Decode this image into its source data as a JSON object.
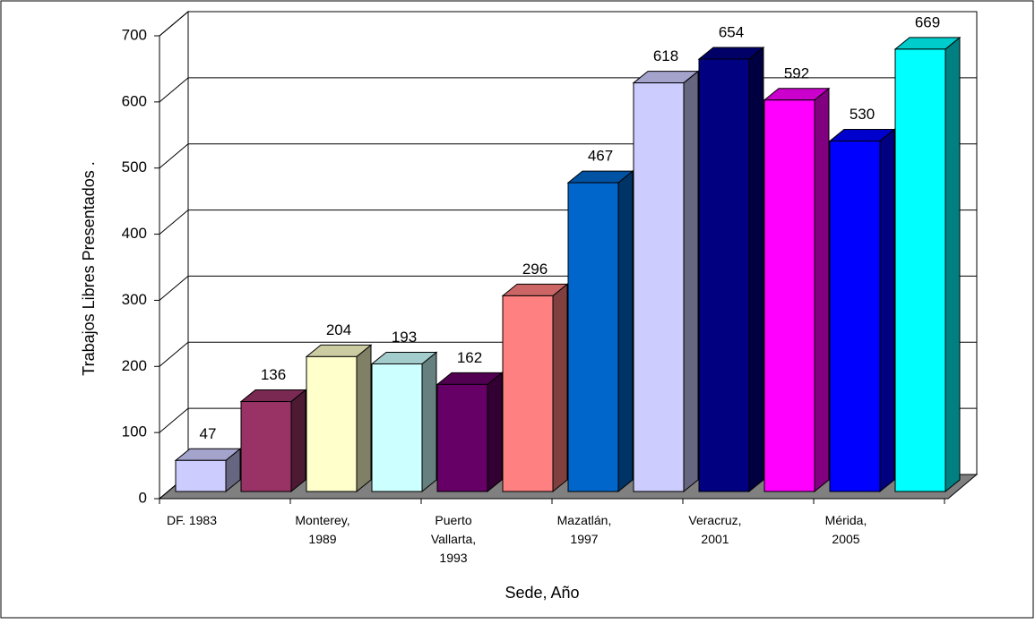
{
  "chart_data": {
    "type": "bar3d",
    "y_label": "Trabajos Libres Presentados .",
    "x_label": "Sede, Año",
    "categories": [
      [
        "DF. 1983"
      ],
      null,
      [
        "Monterey,",
        "1989"
      ],
      null,
      [
        "Puerto",
        "Vallarta,",
        "1993"
      ],
      null,
      [
        "Mazatlán,",
        "1997"
      ],
      null,
      [
        "Veracruz,",
        "2001"
      ],
      null,
      [
        "Mérida,",
        "2005"
      ],
      null
    ],
    "values": [
      47,
      136,
      204,
      193,
      162,
      296,
      467,
      618,
      654,
      592,
      530,
      669
    ],
    "colors": [
      "#ccccff",
      "#993366",
      "#ffffcc",
      "#ccffff",
      "#660066",
      "#ff8080",
      "#0066cc",
      "#ccccff",
      "#000080",
      "#ff00ff",
      "#0000ff",
      "#00ffff"
    ],
    "ylim": [
      0,
      700
    ],
    "yticks": [
      0,
      100,
      200,
      300,
      400,
      500,
      600,
      700
    ],
    "grid": true
  }
}
